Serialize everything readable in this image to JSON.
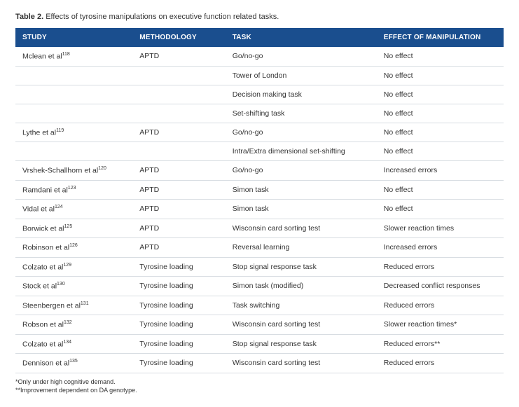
{
  "caption": {
    "label": "Table 2.",
    "text": "Effects of tyrosine manipulations on executive function related tasks."
  },
  "columns": [
    {
      "header": "STUDY",
      "width": "24%"
    },
    {
      "header": "METHODOLOGY",
      "width": "19%"
    },
    {
      "header": "TASK",
      "width": "31%"
    },
    {
      "header": "EFFECT OF MANIPULATION",
      "width": "26%"
    }
  ],
  "rows": [
    {
      "study": "Mclean et al",
      "ref": "118",
      "methodology": "APTD",
      "task": "Go/no-go",
      "effect": "No effect"
    },
    {
      "study": "",
      "ref": "",
      "methodology": "",
      "task": "Tower of London",
      "effect": "No effect"
    },
    {
      "study": "",
      "ref": "",
      "methodology": "",
      "task": "Decision making task",
      "effect": "No effect"
    },
    {
      "study": "",
      "ref": "",
      "methodology": "",
      "task": "Set-shifting task",
      "effect": "No effect"
    },
    {
      "study": "Lythe et al",
      "ref": "119",
      "methodology": "APTD",
      "task": "Go/no-go",
      "effect": "No effect"
    },
    {
      "study": "",
      "ref": "",
      "methodology": "",
      "task": "Intra/Extra dimensional set-shifting",
      "effect": "No effect"
    },
    {
      "study": "Vrshek-Schallhorn et al",
      "ref": "120",
      "methodology": "APTD",
      "task": "Go/no-go",
      "effect": "Increased errors"
    },
    {
      "study": "Ramdani et al",
      "ref": "123",
      "methodology": "APTD",
      "task": "Simon task",
      "effect": "No effect"
    },
    {
      "study": "Vidal et al",
      "ref": "124",
      "methodology": "APTD",
      "task": "Simon task",
      "effect": "No effect"
    },
    {
      "study": "Borwick et al",
      "ref": "125",
      "methodology": "APTD",
      "task": "Wisconsin card sorting test",
      "effect": "Slower reaction times"
    },
    {
      "study": "Robinson et al",
      "ref": "126",
      "methodology": "APTD",
      "task": "Reversal learning",
      "effect": "Increased errors"
    },
    {
      "study": "Colzato et al",
      "ref": "129",
      "methodology": "Tyrosine loading",
      "task": "Stop signal response task",
      "effect": "Reduced errors"
    },
    {
      "study": "Stock et al",
      "ref": "130",
      "methodology": "Tyrosine loading",
      "task": "Simon task (modified)",
      "effect": "Decreased conflict responses"
    },
    {
      "study": "Steenbergen et al",
      "ref": "131",
      "methodology": "Tyrosine loading",
      "task": "Task switching",
      "effect": "Reduced errors"
    },
    {
      "study": "Robson et al",
      "ref": "132",
      "methodology": "Tyrosine loading",
      "task": "Wisconsin card sorting test",
      "effect": "Slower reaction times*"
    },
    {
      "study": "Colzato et al",
      "ref": "134",
      "methodology": "Tyrosine loading",
      "task": "Stop signal response task",
      "effect": "Reduced errors**"
    },
    {
      "study": "Dennison et al",
      "ref": "135",
      "methodology": "Tyrosine loading",
      "task": "Wisconsin card sorting test",
      "effect": "Reduced errors"
    }
  ],
  "footnotes": [
    "*Only under high cognitive demand.",
    "**Improvement dependent on DA genotype."
  ],
  "colors": {
    "header_bg": "#1a4e8e",
    "header_text": "#ffffff",
    "row_border": "#d8dde2",
    "body_text": "#333333",
    "background": "#ffffff"
  }
}
